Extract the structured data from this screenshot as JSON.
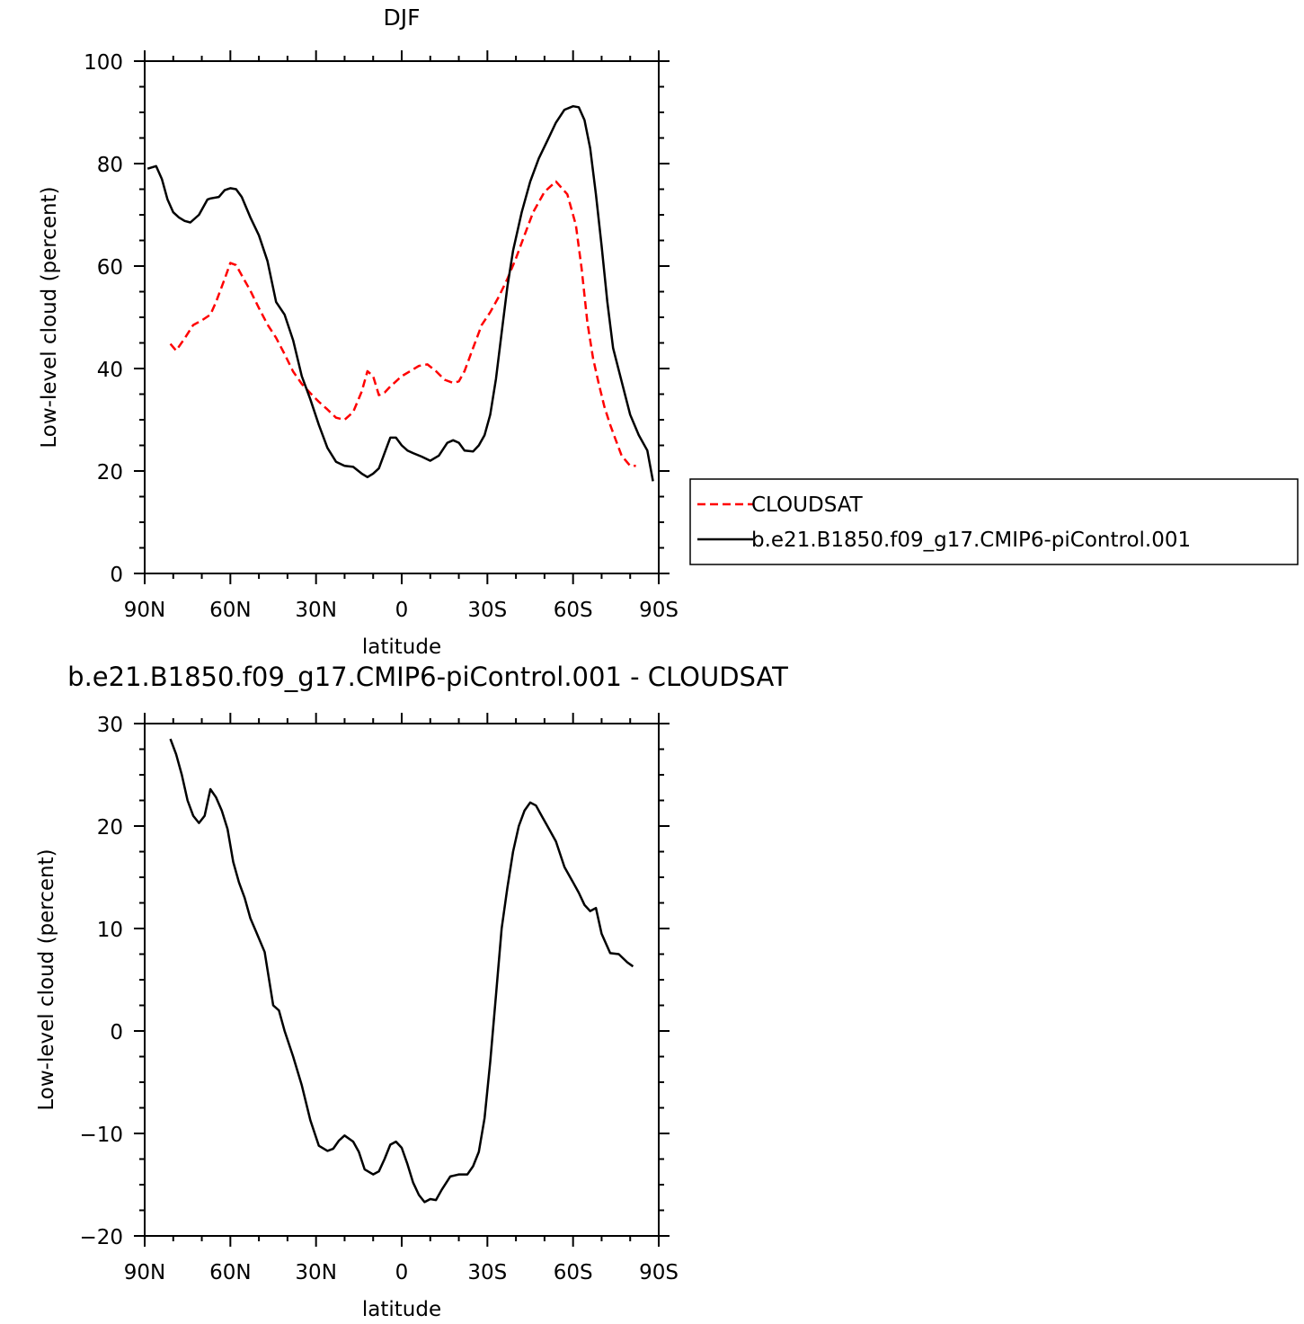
{
  "chart_data": [
    {
      "type": "line",
      "title": "DJF",
      "xlabel": "latitude",
      "ylabel": "Low-level cloud (percent)",
      "xlim": [
        90,
        -90
      ],
      "ylim": [
        0,
        100
      ],
      "x_ticks": [
        90,
        60,
        30,
        0,
        -30,
        -60,
        -90
      ],
      "x_tick_labels": [
        "90N",
        "60N",
        "30N",
        "0",
        "30S",
        "60S",
        "90S"
      ],
      "y_ticks": [
        0,
        20,
        40,
        60,
        80,
        100
      ],
      "y_tick_labels": [
        "0",
        "20",
        "40",
        "60",
        "80",
        "100"
      ],
      "legend_position": "right, outside plot",
      "series": [
        {
          "name": "CLOUDSAT",
          "color": "#ff0000",
          "style": "dashed",
          "x": [
            81,
            79,
            76,
            73,
            70,
            67,
            65,
            62,
            60,
            58,
            56,
            53,
            50,
            47,
            44,
            41,
            38,
            35,
            32,
            29,
            26,
            23,
            20,
            17,
            14,
            12,
            10,
            8,
            6,
            4,
            2,
            0,
            -3,
            -6,
            -9,
            -12,
            -15,
            -18,
            -20,
            -22,
            -25,
            -28,
            -31,
            -34,
            -37,
            -40,
            -43,
            -46,
            -50,
            -54,
            -58,
            -61,
            -63,
            -65,
            -67,
            -69,
            -71,
            -73,
            -75,
            -77,
            -80,
            -82
          ],
          "y": [
            44.8,
            43.5,
            45.9,
            48.5,
            49.4,
            50.5,
            53.0,
            57.5,
            60.6,
            60.2,
            58.2,
            55.2,
            51.8,
            48.6,
            46.0,
            42.8,
            39.4,
            37.0,
            35.2,
            33.5,
            32.0,
            30.4,
            30.0,
            31.5,
            35.5,
            39.5,
            38.5,
            34.8,
            35.3,
            36.5,
            37.5,
            38.5,
            39.5,
            40.5,
            40.8,
            39.5,
            37.8,
            37.2,
            37.5,
            39.5,
            44.0,
            48.5,
            51.0,
            54.0,
            57.5,
            61.5,
            66.0,
            70.5,
            74.5,
            76.5,
            74.0,
            68.0,
            59.5,
            49.0,
            42.0,
            37.0,
            32.5,
            29.0,
            26.0,
            23.0,
            21.0,
            21.0
          ]
        },
        {
          "name": "b.e21.B1850.f09_g17.CMIP6-piControl.001",
          "color": "#000000",
          "style": "solid",
          "x": [
            89,
            86,
            84,
            82,
            80,
            78,
            76,
            74,
            71,
            68,
            67,
            64,
            62,
            60,
            58,
            56,
            53,
            50,
            47,
            44,
            41,
            38,
            35,
            32,
            29,
            26,
            23,
            20,
            17,
            14,
            12,
            10,
            8,
            6,
            4,
            2,
            0,
            -2,
            -4,
            -7,
            -10,
            -13,
            -16,
            -18,
            -20,
            -22,
            -25,
            -27,
            -29,
            -31,
            -33,
            -35,
            -37,
            -39,
            -42,
            -45,
            -48,
            -51,
            -54,
            -57,
            -60,
            -62,
            -64,
            -66,
            -68,
            -70,
            -72,
            -74,
            -77,
            -80,
            -83,
            -86,
            -88
          ],
          "y": [
            79.0,
            79.5,
            77.0,
            73.0,
            70.5,
            69.5,
            68.8,
            68.5,
            70.0,
            73.0,
            73.2,
            73.5,
            74.8,
            75.2,
            75.0,
            73.5,
            69.5,
            66.0,
            61.0,
            53.0,
            50.5,
            45.5,
            38.5,
            34.0,
            29.0,
            24.5,
            21.8,
            21.0,
            20.8,
            19.5,
            18.8,
            19.5,
            20.5,
            23.5,
            26.5,
            26.5,
            25.0,
            24.0,
            23.5,
            22.8,
            22.0,
            23.0,
            25.5,
            26.0,
            25.5,
            24.0,
            23.8,
            25.0,
            27.0,
            31.0,
            38.0,
            47.0,
            56.0,
            63.0,
            70.5,
            76.5,
            81.0,
            84.5,
            88.0,
            90.5,
            91.2,
            91.0,
            88.5,
            83.0,
            74.0,
            64.0,
            53.0,
            44.0,
            37.5,
            31.0,
            27.0,
            24.0,
            18.0
          ]
        }
      ]
    },
    {
      "type": "line",
      "title": "b.e21.B1850.f09_g17.CMIP6-piControl.001 - CLOUDSAT",
      "xlabel": "latitude",
      "ylabel": "Low-level cloud (percent)",
      "xlim": [
        90,
        -90
      ],
      "ylim": [
        -20,
        30
      ],
      "x_ticks": [
        90,
        60,
        30,
        0,
        -30,
        -60,
        -90
      ],
      "x_tick_labels": [
        "90N",
        "60N",
        "30N",
        "0",
        "30S",
        "60S",
        "90S"
      ],
      "y_ticks": [
        -20,
        -10,
        0,
        10,
        20,
        30
      ],
      "y_tick_labels": [
        "−20",
        "−10",
        "0",
        "10",
        "20",
        "30"
      ],
      "series": [
        {
          "color": "#000000",
          "style": "solid",
          "x": [
            81,
            79,
            77,
            75,
            73,
            71,
            69,
            67,
            65,
            63,
            61,
            59,
            57,
            55,
            53,
            51,
            48,
            45,
            43,
            41,
            38,
            35,
            32,
            29,
            26,
            24,
            22,
            20,
            17,
            15,
            13,
            10,
            8,
            6,
            4,
            2,
            0,
            -2,
            -4,
            -6,
            -8,
            -10,
            -12,
            -14,
            -17,
            -20,
            -23,
            -25,
            -27,
            -29,
            -31,
            -33,
            -35,
            -37,
            -39,
            -41,
            -43,
            -45,
            -47,
            -49,
            -51,
            -54,
            -57,
            -60,
            -62,
            -64,
            -66,
            -68,
            -70,
            -73,
            -76,
            -79,
            -81
          ],
          "y": [
            28.5,
            27.0,
            25.0,
            22.5,
            21.0,
            20.3,
            21.0,
            23.6,
            22.8,
            21.5,
            19.7,
            16.5,
            14.5,
            13.0,
            11.0,
            9.7,
            7.7,
            2.5,
            2.0,
            0.0,
            -2.5,
            -5.3,
            -8.7,
            -11.2,
            -11.7,
            -11.5,
            -10.7,
            -10.2,
            -10.8,
            -11.8,
            -13.5,
            -14.0,
            -13.7,
            -12.5,
            -11.1,
            -10.8,
            -11.4,
            -13.0,
            -14.8,
            -16.0,
            -16.7,
            -16.4,
            -16.5,
            -15.5,
            -14.2,
            -14.0,
            -14.0,
            -13.2,
            -11.8,
            -8.5,
            -3.0,
            3.5,
            10.0,
            14.0,
            17.5,
            20.0,
            21.5,
            22.3,
            22.0,
            21.0,
            20.0,
            18.5,
            16.0,
            14.5,
            13.5,
            12.3,
            11.7,
            12.0,
            9.5,
            7.6,
            7.5,
            6.7,
            6.3
          ]
        }
      ]
    }
  ]
}
